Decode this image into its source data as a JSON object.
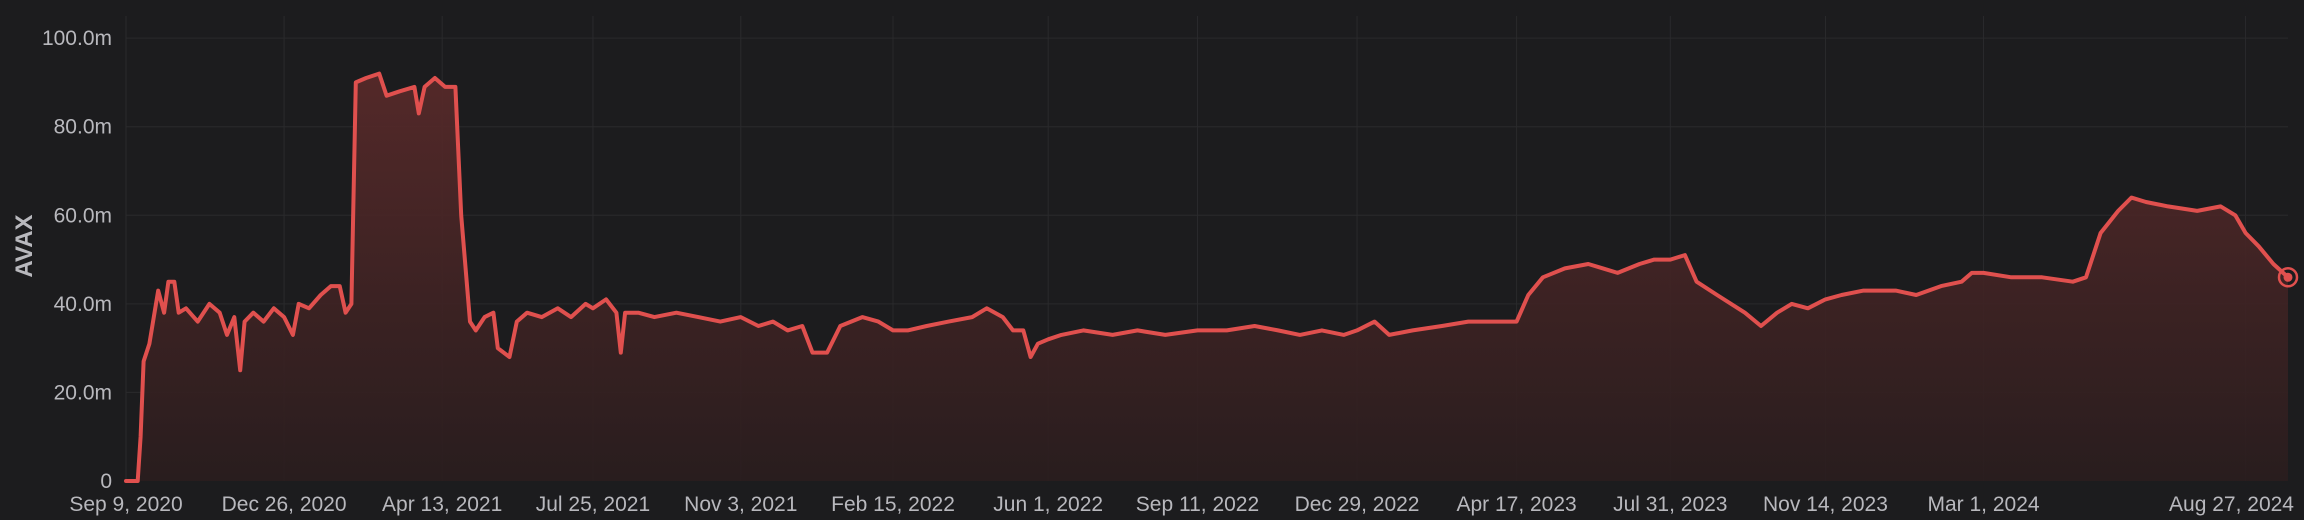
{
  "chart_data": {
    "type": "area",
    "title": "",
    "xlabel": "",
    "ylabel": "AVAX",
    "ylim": [
      0,
      105000000
    ],
    "xlim": [
      "2020-09-09",
      "2024-09-25"
    ],
    "grid": true,
    "legend": "none",
    "colors": {
      "background": "#1c1c1e",
      "line": "#e0504e",
      "fill_top": "#5a2a2a",
      "fill_bottom": "#2a1d1e",
      "grid": "#2a2a2c",
      "text": "#b8b8bd"
    },
    "y_ticks": [
      {
        "value": 0,
        "label": "0"
      },
      {
        "value": 20000000,
        "label": "20.0m"
      },
      {
        "value": 40000000,
        "label": "40.0m"
      },
      {
        "value": 60000000,
        "label": "60.0m"
      },
      {
        "value": 80000000,
        "label": "80.0m"
      },
      {
        "value": 100000000,
        "label": "100.0m"
      }
    ],
    "x_ticks": [
      {
        "date": "2020-09-09",
        "label": "Sep 9, 2020"
      },
      {
        "date": "2020-12-26",
        "label": "Dec 26, 2020"
      },
      {
        "date": "2021-04-13",
        "label": "Apr 13, 2021"
      },
      {
        "date": "2021-07-25",
        "label": "Jul 25, 2021"
      },
      {
        "date": "2021-11-03",
        "label": "Nov 3, 2021"
      },
      {
        "date": "2022-02-15",
        "label": "Feb 15, 2022"
      },
      {
        "date": "2022-06-01",
        "label": "Jun 1, 2022"
      },
      {
        "date": "2022-09-11",
        "label": "Sep 11, 2022"
      },
      {
        "date": "2022-12-29",
        "label": "Dec 29, 2022"
      },
      {
        "date": "2023-04-17",
        "label": "Apr 17, 2023"
      },
      {
        "date": "2023-07-31",
        "label": "Jul 31, 2023"
      },
      {
        "date": "2023-11-14",
        "label": "Nov 14, 2023"
      },
      {
        "date": "2024-03-01",
        "label": "Mar 1, 2024"
      },
      {
        "date": "2024-08-27",
        "label": "Aug 27, 2024"
      }
    ],
    "series": [
      {
        "points": [
          [
            "2020-09-09",
            0
          ],
          [
            "2020-09-17",
            0
          ],
          [
            "2020-09-19",
            10000000
          ],
          [
            "2020-09-21",
            27000000
          ],
          [
            "2020-09-25",
            31000000
          ],
          [
            "2020-09-28",
            37000000
          ],
          [
            "2020-10-01",
            43000000
          ],
          [
            "2020-10-05",
            38000000
          ],
          [
            "2020-10-08",
            45000000
          ],
          [
            "2020-10-12",
            45000000
          ],
          [
            "2020-10-15",
            38000000
          ],
          [
            "2020-10-20",
            39000000
          ],
          [
            "2020-10-28",
            36000000
          ],
          [
            "2020-11-05",
            40000000
          ],
          [
            "2020-11-12",
            38000000
          ],
          [
            "2020-11-17",
            33000000
          ],
          [
            "2020-11-22",
            37000000
          ],
          [
            "2020-11-26",
            25000000
          ],
          [
            "2020-11-29",
            36000000
          ],
          [
            "2020-12-05",
            38000000
          ],
          [
            "2020-12-12",
            36000000
          ],
          [
            "2020-12-19",
            39000000
          ],
          [
            "2020-12-26",
            37000000
          ],
          [
            "2021-01-01",
            33000000
          ],
          [
            "2021-01-05",
            40000000
          ],
          [
            "2021-01-12",
            39000000
          ],
          [
            "2021-01-20",
            42000000
          ],
          [
            "2021-01-27",
            44000000
          ],
          [
            "2021-02-02",
            44000000
          ],
          [
            "2021-02-06",
            38000000
          ],
          [
            "2021-02-10",
            40000000
          ],
          [
            "2021-02-13",
            90000000
          ],
          [
            "2021-02-20",
            91000000
          ],
          [
            "2021-03-01",
            92000000
          ],
          [
            "2021-03-06",
            87000000
          ],
          [
            "2021-03-15",
            88000000
          ],
          [
            "2021-03-25",
            89000000
          ],
          [
            "2021-03-28",
            83000000
          ],
          [
            "2021-04-01",
            89000000
          ],
          [
            "2021-04-08",
            91000000
          ],
          [
            "2021-04-15",
            89000000
          ],
          [
            "2021-04-22",
            89000000
          ],
          [
            "2021-04-26",
            60000000
          ],
          [
            "2021-05-02",
            36000000
          ],
          [
            "2021-05-06",
            34000000
          ],
          [
            "2021-05-12",
            37000000
          ],
          [
            "2021-05-18",
            38000000
          ],
          [
            "2021-05-21",
            30000000
          ],
          [
            "2021-05-29",
            28000000
          ],
          [
            "2021-06-03",
            36000000
          ],
          [
            "2021-06-10",
            38000000
          ],
          [
            "2021-06-20",
            37000000
          ],
          [
            "2021-07-01",
            39000000
          ],
          [
            "2021-07-10",
            37000000
          ],
          [
            "2021-07-20",
            40000000
          ],
          [
            "2021-07-25",
            39000000
          ],
          [
            "2021-08-03",
            41000000
          ],
          [
            "2021-08-10",
            38000000
          ],
          [
            "2021-08-13",
            29000000
          ],
          [
            "2021-08-16",
            38000000
          ],
          [
            "2021-08-25",
            38000000
          ],
          [
            "2021-09-05",
            37000000
          ],
          [
            "2021-09-20",
            38000000
          ],
          [
            "2021-10-05",
            37000000
          ],
          [
            "2021-10-20",
            36000000
          ],
          [
            "2021-11-03",
            37000000
          ],
          [
            "2021-11-15",
            35000000
          ],
          [
            "2021-11-25",
            36000000
          ],
          [
            "2021-12-05",
            34000000
          ],
          [
            "2021-12-15",
            35000000
          ],
          [
            "2021-12-22",
            29000000
          ],
          [
            "2022-01-01",
            29000000
          ],
          [
            "2022-01-10",
            35000000
          ],
          [
            "2022-01-25",
            37000000
          ],
          [
            "2022-02-05",
            36000000
          ],
          [
            "2022-02-15",
            34000000
          ],
          [
            "2022-02-25",
            34000000
          ],
          [
            "2022-03-10",
            35000000
          ],
          [
            "2022-03-25",
            36000000
          ],
          [
            "2022-04-10",
            37000000
          ],
          [
            "2022-04-20",
            39000000
          ],
          [
            "2022-05-01",
            37000000
          ],
          [
            "2022-05-08",
            34000000
          ],
          [
            "2022-05-15",
            34000000
          ],
          [
            "2022-05-20",
            28000000
          ],
          [
            "2022-05-25",
            31000000
          ],
          [
            "2022-06-01",
            32000000
          ],
          [
            "2022-06-10",
            33000000
          ],
          [
            "2022-06-25",
            34000000
          ],
          [
            "2022-07-15",
            33000000
          ],
          [
            "2022-08-01",
            34000000
          ],
          [
            "2022-08-20",
            33000000
          ],
          [
            "2022-09-11",
            34000000
          ],
          [
            "2022-10-01",
            34000000
          ],
          [
            "2022-10-20",
            35000000
          ],
          [
            "2022-11-05",
            34000000
          ],
          [
            "2022-11-20",
            33000000
          ],
          [
            "2022-12-05",
            34000000
          ],
          [
            "2022-12-20",
            33000000
          ],
          [
            "2022-12-29",
            34000000
          ],
          [
            "2023-01-10",
            36000000
          ],
          [
            "2023-01-20",
            33000000
          ],
          [
            "2023-02-05",
            34000000
          ],
          [
            "2023-02-25",
            35000000
          ],
          [
            "2023-03-15",
            36000000
          ],
          [
            "2023-04-05",
            36000000
          ],
          [
            "2023-04-17",
            36000000
          ],
          [
            "2023-04-25",
            42000000
          ],
          [
            "2023-05-05",
            46000000
          ],
          [
            "2023-05-20",
            48000000
          ],
          [
            "2023-06-05",
            49000000
          ],
          [
            "2023-06-15",
            48000000
          ],
          [
            "2023-06-25",
            47000000
          ],
          [
            "2023-07-10",
            49000000
          ],
          [
            "2023-07-20",
            50000000
          ],
          [
            "2023-07-31",
            50000000
          ],
          [
            "2023-08-10",
            51000000
          ],
          [
            "2023-08-18",
            45000000
          ],
          [
            "2023-09-01",
            42000000
          ],
          [
            "2023-09-20",
            38000000
          ],
          [
            "2023-10-01",
            35000000
          ],
          [
            "2023-10-12",
            38000000
          ],
          [
            "2023-10-22",
            40000000
          ],
          [
            "2023-11-02",
            39000000
          ],
          [
            "2023-11-14",
            41000000
          ],
          [
            "2023-11-25",
            42000000
          ],
          [
            "2023-12-10",
            43000000
          ],
          [
            "2024-01-01",
            43000000
          ],
          [
            "2024-01-15",
            42000000
          ],
          [
            "2024-02-01",
            44000000
          ],
          [
            "2024-02-15",
            45000000
          ],
          [
            "2024-02-22",
            47000000
          ],
          [
            "2024-03-01",
            47000000
          ],
          [
            "2024-03-20",
            46000000
          ],
          [
            "2024-04-10",
            46000000
          ],
          [
            "2024-05-01",
            45000000
          ],
          [
            "2024-05-10",
            46000000
          ],
          [
            "2024-05-20",
            56000000
          ],
          [
            "2024-06-01",
            61000000
          ],
          [
            "2024-06-10",
            64000000
          ],
          [
            "2024-06-20",
            63000000
          ],
          [
            "2024-07-05",
            62000000
          ],
          [
            "2024-07-25",
            61000000
          ],
          [
            "2024-08-10",
            62000000
          ],
          [
            "2024-08-20",
            60000000
          ],
          [
            "2024-08-27",
            56000000
          ],
          [
            "2024-09-05",
            53000000
          ],
          [
            "2024-09-15",
            49000000
          ],
          [
            "2024-09-25",
            46000000
          ]
        ]
      }
    ]
  }
}
